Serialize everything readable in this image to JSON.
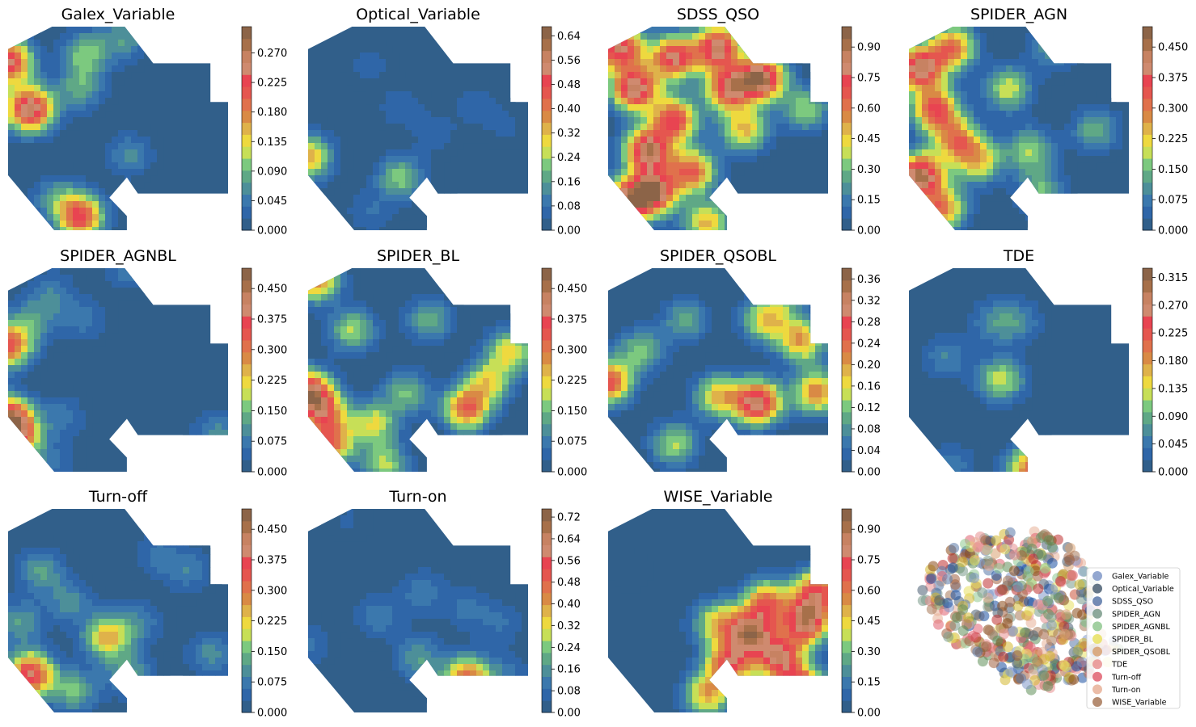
{
  "colors": {
    "ramp": [
      "#315f8a",
      "#2f66a8",
      "#3b78ad",
      "#4d8f99",
      "#5fa886",
      "#7cc97f",
      "#c7df57",
      "#eed93f",
      "#dfb24a",
      "#d98a45",
      "#e0714c",
      "#e5564f",
      "#e84451",
      "#cf8a6f",
      "#c78262",
      "#a7704a",
      "#8c6448"
    ],
    "background": "#315f8a"
  },
  "chart_data": [
    {
      "type": "heatmap",
      "title": "Galex_Variable",
      "cmap_ticks": [
        "0.000",
        "0.045",
        "0.090",
        "0.135",
        "0.180",
        "0.225",
        "0.270"
      ],
      "vmin": 0,
      "vmax": 0.31,
      "hotspots": [
        [
          0.0,
          0.17,
          0.25
        ],
        [
          0.1,
          0.4,
          0.27
        ],
        [
          0.33,
          0.3,
          0.08
        ],
        [
          0.35,
          0.13,
          0.1
        ],
        [
          0.53,
          0.06,
          0.07
        ],
        [
          0.55,
          0.62,
          0.06
        ],
        [
          0.33,
          0.92,
          0.22
        ],
        [
          0.22,
          0.83,
          0.07
        ]
      ]
    },
    {
      "type": "heatmap",
      "title": "Optical_Variable",
      "cmap_ticks": [
        "0.00",
        "0.08",
        "0.16",
        "0.24",
        "0.32",
        "0.40",
        "0.48",
        "0.56",
        "0.64"
      ],
      "vmin": 0,
      "vmax": 0.67,
      "hotspots": [
        [
          0.0,
          0.63,
          0.35
        ],
        [
          0.28,
          0.18,
          0.06
        ],
        [
          0.42,
          0.39,
          0.07
        ],
        [
          0.58,
          0.52,
          0.06
        ],
        [
          0.42,
          0.73,
          0.22
        ],
        [
          0.28,
          0.9,
          0.08
        ],
        [
          0.65,
          0.92,
          0.05
        ],
        [
          0.76,
          0.38,
          0.06
        ],
        [
          0.9,
          0.48,
          0.05
        ]
      ]
    },
    {
      "type": "heatmap",
      "title": "SDSS_QSO",
      "cmap_ticks": [
        "0.00",
        "0.15",
        "0.30",
        "0.45",
        "0.60",
        "0.75",
        "0.90"
      ],
      "vmin": 0,
      "vmax": 1.0,
      "hotspots": [
        [
          0.05,
          0.1,
          0.82
        ],
        [
          0.12,
          0.3,
          0.85
        ],
        [
          0.3,
          0.15,
          0.78
        ],
        [
          0.5,
          0.1,
          0.8
        ],
        [
          0.7,
          0.25,
          0.88
        ],
        [
          0.55,
          0.3,
          0.75
        ],
        [
          0.3,
          0.45,
          0.72
        ],
        [
          0.18,
          0.6,
          0.85
        ],
        [
          0.2,
          0.8,
          0.9
        ],
        [
          0.38,
          0.7,
          0.65
        ],
        [
          0.08,
          0.85,
          0.7
        ],
        [
          0.9,
          0.4,
          0.35
        ],
        [
          0.62,
          0.5,
          0.48
        ],
        [
          0.45,
          0.95,
          0.5
        ]
      ]
    },
    {
      "type": "heatmap",
      "title": "SPIDER_AGN",
      "cmap_ticks": [
        "0.000",
        "0.075",
        "0.150",
        "0.225",
        "0.300",
        "0.375",
        "0.450"
      ],
      "vmin": 0,
      "vmax": 0.5,
      "hotspots": [
        [
          0.05,
          0.2,
          0.42
        ],
        [
          0.2,
          0.1,
          0.3
        ],
        [
          0.12,
          0.4,
          0.35
        ],
        [
          0.22,
          0.55,
          0.28
        ],
        [
          0.05,
          0.72,
          0.45
        ],
        [
          0.15,
          0.88,
          0.3
        ],
        [
          0.32,
          0.65,
          0.22
        ],
        [
          0.45,
          0.3,
          0.2
        ],
        [
          0.55,
          0.6,
          0.18
        ],
        [
          0.65,
          0.1,
          0.12
        ],
        [
          0.85,
          0.5,
          0.14
        ],
        [
          0.6,
          0.8,
          0.15
        ]
      ]
    },
    {
      "type": "heatmap",
      "title": "SPIDER_AGNBL",
      "cmap_ticks": [
        "0.000",
        "0.075",
        "0.150",
        "0.225",
        "0.300",
        "0.375",
        "0.450"
      ],
      "vmin": 0,
      "vmax": 0.5,
      "hotspots": [
        [
          0.0,
          0.37,
          0.35
        ],
        [
          0.0,
          0.73,
          0.45
        ],
        [
          0.12,
          0.25,
          0.1
        ],
        [
          0.2,
          0.12,
          0.08
        ],
        [
          0.35,
          0.25,
          0.07
        ],
        [
          0.05,
          0.83,
          0.25
        ],
        [
          0.25,
          0.72,
          0.07
        ],
        [
          0.55,
          0.0,
          0.08
        ],
        [
          0.95,
          0.8,
          0.1
        ],
        [
          0.2,
          0.95,
          0.06
        ]
      ]
    },
    {
      "type": "heatmap",
      "title": "SPIDER_BL",
      "cmap_ticks": [
        "0.000",
        "0.075",
        "0.150",
        "0.225",
        "0.300",
        "0.375",
        "0.450"
      ],
      "vmin": 0,
      "vmax": 0.5,
      "hotspots": [
        [
          0.03,
          0.05,
          0.32
        ],
        [
          0.0,
          0.6,
          0.42
        ],
        [
          0.08,
          0.7,
          0.25
        ],
        [
          0.2,
          0.3,
          0.18
        ],
        [
          0.3,
          0.75,
          0.2
        ],
        [
          0.45,
          0.6,
          0.15
        ],
        [
          0.55,
          0.25,
          0.14
        ],
        [
          0.72,
          0.68,
          0.32
        ],
        [
          0.82,
          0.55,
          0.2
        ],
        [
          0.92,
          0.4,
          0.22
        ],
        [
          0.1,
          0.85,
          0.3
        ],
        [
          0.35,
          0.95,
          0.18
        ]
      ]
    },
    {
      "type": "heatmap",
      "title": "SPIDER_QSOBL",
      "cmap_ticks": [
        "0.00",
        "0.04",
        "0.08",
        "0.12",
        "0.16",
        "0.20",
        "0.24",
        "0.28",
        "0.32",
        "0.36"
      ],
      "vmin": 0,
      "vmax": 0.38,
      "hotspots": [
        [
          0.0,
          0.55,
          0.27
        ],
        [
          0.15,
          0.4,
          0.12
        ],
        [
          0.35,
          0.25,
          0.1
        ],
        [
          0.5,
          0.62,
          0.18
        ],
        [
          0.68,
          0.65,
          0.32
        ],
        [
          0.72,
          0.25,
          0.18
        ],
        [
          0.88,
          0.35,
          0.2
        ],
        [
          0.95,
          0.6,
          0.22
        ],
        [
          0.3,
          0.85,
          0.14
        ],
        [
          0.82,
          0.12,
          0.08
        ]
      ]
    },
    {
      "type": "heatmap",
      "title": "TDE",
      "cmap_ticks": [
        "0.000",
        "0.045",
        "0.090",
        "0.135",
        "0.180",
        "0.225",
        "0.270",
        "0.315"
      ],
      "vmin": 0,
      "vmax": 0.33,
      "hotspots": [
        [
          0.38,
          0.26,
          0.06
        ],
        [
          0.5,
          0.26,
          0.06
        ],
        [
          0.17,
          0.43,
          0.06
        ],
        [
          0.42,
          0.54,
          0.13
        ],
        [
          0.55,
          0.97,
          0.2
        ],
        [
          0.2,
          0.95,
          0.05
        ]
      ]
    },
    {
      "type": "heatmap",
      "title": "Turn-off",
      "cmap_ticks": [
        "0.000",
        "0.075",
        "0.150",
        "0.225",
        "0.300",
        "0.375",
        "0.450"
      ],
      "vmin": 0,
      "vmax": 0.5,
      "hotspots": [
        [
          0.1,
          0.8,
          0.38
        ],
        [
          0.45,
          0.62,
          0.25
        ],
        [
          0.15,
          0.3,
          0.12
        ],
        [
          0.28,
          0.45,
          0.1
        ],
        [
          0.6,
          0.55,
          0.08
        ],
        [
          0.55,
          0.8,
          0.12
        ],
        [
          0.3,
          0.88,
          0.15
        ],
        [
          0.92,
          0.7,
          0.1
        ],
        [
          0.82,
          0.3,
          0.08
        ],
        [
          0.68,
          0.22,
          0.07
        ],
        [
          0.05,
          0.55,
          0.12
        ]
      ]
    },
    {
      "type": "heatmap",
      "title": "Turn-on",
      "cmap_ticks": [
        "0.00",
        "0.08",
        "0.16",
        "0.24",
        "0.32",
        "0.40",
        "0.48",
        "0.56",
        "0.64",
        "0.72"
      ],
      "vmin": 0,
      "vmax": 0.75,
      "hotspots": [
        [
          0.72,
          0.82,
          0.48
        ],
        [
          0.52,
          0.4,
          0.12
        ],
        [
          0.72,
          0.48,
          0.1
        ],
        [
          0.88,
          0.55,
          0.09
        ],
        [
          0.32,
          0.52,
          0.12
        ],
        [
          0.0,
          0.65,
          0.1
        ],
        [
          0.5,
          0.72,
          0.18
        ],
        [
          0.9,
          0.8,
          0.1
        ],
        [
          0.18,
          0.05,
          0.05
        ]
      ]
    },
    {
      "type": "heatmap",
      "title": "WISE_Variable",
      "cmap_ticks": [
        "0.00",
        "0.15",
        "0.30",
        "0.45",
        "0.60",
        "0.75",
        "0.90"
      ],
      "vmin": 0,
      "vmax": 1.0,
      "hotspots": [
        [
          0.65,
          0.6,
          0.78
        ],
        [
          0.78,
          0.72,
          0.75
        ],
        [
          0.9,
          0.55,
          0.82
        ],
        [
          0.55,
          0.75,
          0.7
        ],
        [
          0.72,
          0.45,
          0.6
        ],
        [
          0.95,
          0.4,
          0.7
        ],
        [
          0.88,
          0.88,
          0.88
        ],
        [
          0.5,
          0.55,
          0.45
        ],
        [
          0.45,
          0.9,
          0.5
        ],
        [
          0.1,
          0.3,
          0.05
        ],
        [
          0.25,
          0.6,
          0.04
        ]
      ]
    },
    {
      "type": "scatter",
      "title": "",
      "legend": [
        {
          "label": "Galex_Variable",
          "color": "#8098c8"
        },
        {
          "label": "Optical_Variable",
          "color": "#4a5e72"
        },
        {
          "label": "SDSS_QSO",
          "color": "#5a78a8"
        },
        {
          "label": "SPIDER_AGN",
          "color": "#7a9a8a"
        },
        {
          "label": "SPIDER_AGNBL",
          "color": "#90c890"
        },
        {
          "label": "SPIDER_BL",
          "color": "#e8e060"
        },
        {
          "label": "SPIDER_QSOBL",
          "color": "#d8a070"
        },
        {
          "label": "TDE",
          "color": "#e89090"
        },
        {
          "label": "Turn-off",
          "color": "#e06070"
        },
        {
          "label": "Turn-on",
          "color": "#e8b098"
        },
        {
          "label": "WISE_Variable",
          "color": "#a87858"
        }
      ]
    }
  ]
}
